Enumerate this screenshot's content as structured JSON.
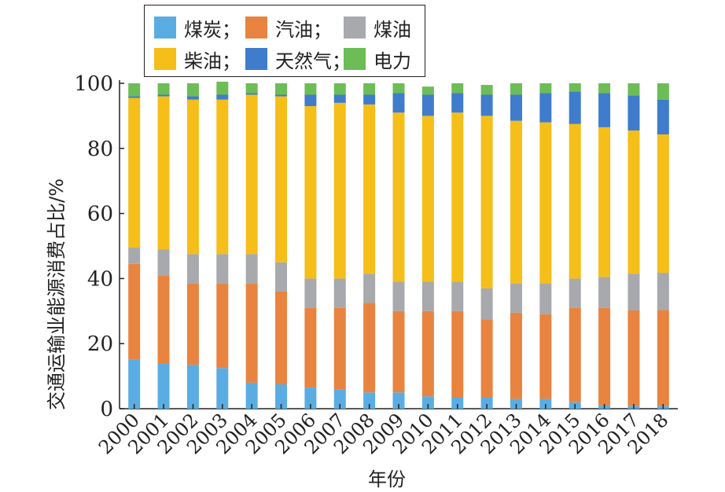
{
  "chart_data": {
    "type": "bar",
    "stacked": true,
    "xlabel": "年份",
    "ylabel": "交通运输业能源消费占比/%",
    "ylim": [
      0,
      100
    ],
    "yticks": [
      0,
      20,
      40,
      60,
      80,
      100
    ],
    "categories": [
      "2000",
      "2001",
      "2002",
      "2003",
      "2004",
      "2005",
      "2006",
      "2007",
      "2008",
      "2009",
      "2010",
      "2011",
      "2012",
      "2013",
      "2014",
      "2015",
      "2016",
      "2017",
      "2018"
    ],
    "legend_position": "top-left",
    "series": [
      {
        "name": "煤炭",
        "color": "#5aade3",
        "values": [
          15,
          14,
          13.5,
          12.5,
          8,
          7.5,
          6.5,
          6,
          5,
          5,
          3.8,
          3.5,
          3.5,
          3,
          3,
          2,
          1,
          0.8,
          0.8
        ]
      },
      {
        "name": "汽油",
        "color": "#e8843f",
        "values": [
          29.5,
          27,
          25,
          26,
          30.5,
          28.5,
          24.5,
          25,
          27.5,
          25,
          26.2,
          26.5,
          24,
          26.5,
          26,
          29,
          30,
          29.4,
          29.5
        ]
      },
      {
        "name": "煤油",
        "color": "#a7a9ac",
        "values": [
          5,
          8,
          9,
          9,
          9,
          9,
          9,
          9,
          9,
          9,
          9,
          9,
          9.5,
          9,
          9.5,
          9,
          9.5,
          11.3,
          11.5
        ]
      },
      {
        "name": "柴油",
        "color": "#f5be19",
        "values": [
          46,
          47,
          47.5,
          47.5,
          49,
          51,
          53,
          54,
          52,
          52,
          51,
          52,
          53,
          50,
          49.5,
          47.5,
          46,
          44,
          42.5
        ]
      },
      {
        "name": "天然气",
        "color": "#3f7ccb",
        "values": [
          0.5,
          0.5,
          1,
          1.5,
          0.5,
          0.5,
          3.5,
          2.5,
          3,
          6,
          6.5,
          6,
          6.5,
          8,
          9,
          10,
          10.5,
          10.8,
          10.7
        ]
      },
      {
        "name": "电力",
        "color": "#6cbd56",
        "values": [
          4,
          3.5,
          4,
          4,
          3,
          3.5,
          3.5,
          3.5,
          3.5,
          3,
          2.5,
          3,
          3,
          3.5,
          3,
          2.5,
          3,
          3.7,
          5
        ]
      }
    ]
  }
}
